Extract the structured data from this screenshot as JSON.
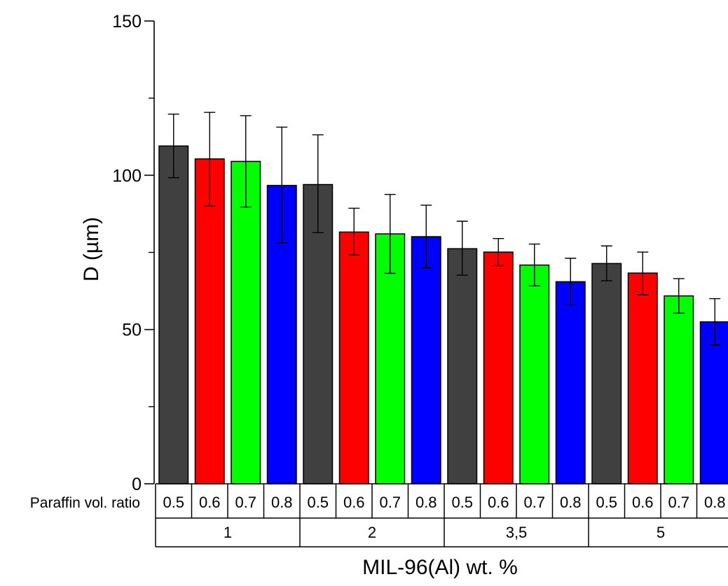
{
  "chart_data": {
    "type": "bar",
    "title": "",
    "ylabel": "D (µm)",
    "xlabel": "MIL-96(Al) wt. %",
    "ylim": [
      0,
      150
    ],
    "yticks": [
      0,
      50,
      100,
      150
    ],
    "y_minor_ticks": [
      25,
      75,
      125
    ],
    "grid": false,
    "row_label": "Paraffin vol. ratio",
    "groups": [
      {
        "label": "1",
        "bars": [
          {
            "ratio": "0.5",
            "value": 109.5,
            "err_low": 99.2,
            "err_high": 119.8
          },
          {
            "ratio": "0.6",
            "value": 105.3,
            "err_low": 90.1,
            "err_high": 120.4
          },
          {
            "ratio": "0.7",
            "value": 104.5,
            "err_low": 89.7,
            "err_high": 119.3
          },
          {
            "ratio": "0.8",
            "value": 96.7,
            "err_low": 78.1,
            "err_high": 115.6
          }
        ]
      },
      {
        "label": "2",
        "bars": [
          {
            "ratio": "0.5",
            "value": 97.0,
            "err_low": 81.4,
            "err_high": 113.1
          },
          {
            "ratio": "0.6",
            "value": 81.6,
            "err_low": 74.2,
            "err_high": 89.3
          },
          {
            "ratio": "0.7",
            "value": 81.0,
            "err_low": 68.2,
            "err_high": 93.8
          },
          {
            "ratio": "0.8",
            "value": 80.1,
            "err_low": 70.0,
            "err_high": 90.3
          }
        ]
      },
      {
        "label": "3,5",
        "bars": [
          {
            "ratio": "0.5",
            "value": 76.2,
            "err_low": 67.6,
            "err_high": 85.1
          },
          {
            "ratio": "0.6",
            "value": 75.1,
            "err_low": 70.7,
            "err_high": 79.5
          },
          {
            "ratio": "0.7",
            "value": 70.9,
            "err_low": 64.2,
            "err_high": 77.7
          },
          {
            "ratio": "0.8",
            "value": 65.5,
            "err_low": 58.0,
            "err_high": 73.1
          }
        ]
      },
      {
        "label": "5",
        "bars": [
          {
            "ratio": "0.5",
            "value": 71.4,
            "err_low": 65.8,
            "err_high": 77.1
          },
          {
            "ratio": "0.6",
            "value": 68.3,
            "err_low": 61.3,
            "err_high": 75.1
          },
          {
            "ratio": "0.7",
            "value": 60.9,
            "err_low": 55.3,
            "err_high": 66.5
          },
          {
            "ratio": "0.8",
            "value": 52.5,
            "err_low": 45.0,
            "err_high": 60.0
          }
        ]
      }
    ],
    "series_colors": {
      "0.5": "#404040",
      "0.6": "#ff0000",
      "0.7": "#00ff00",
      "0.8": "#0000ff"
    }
  }
}
